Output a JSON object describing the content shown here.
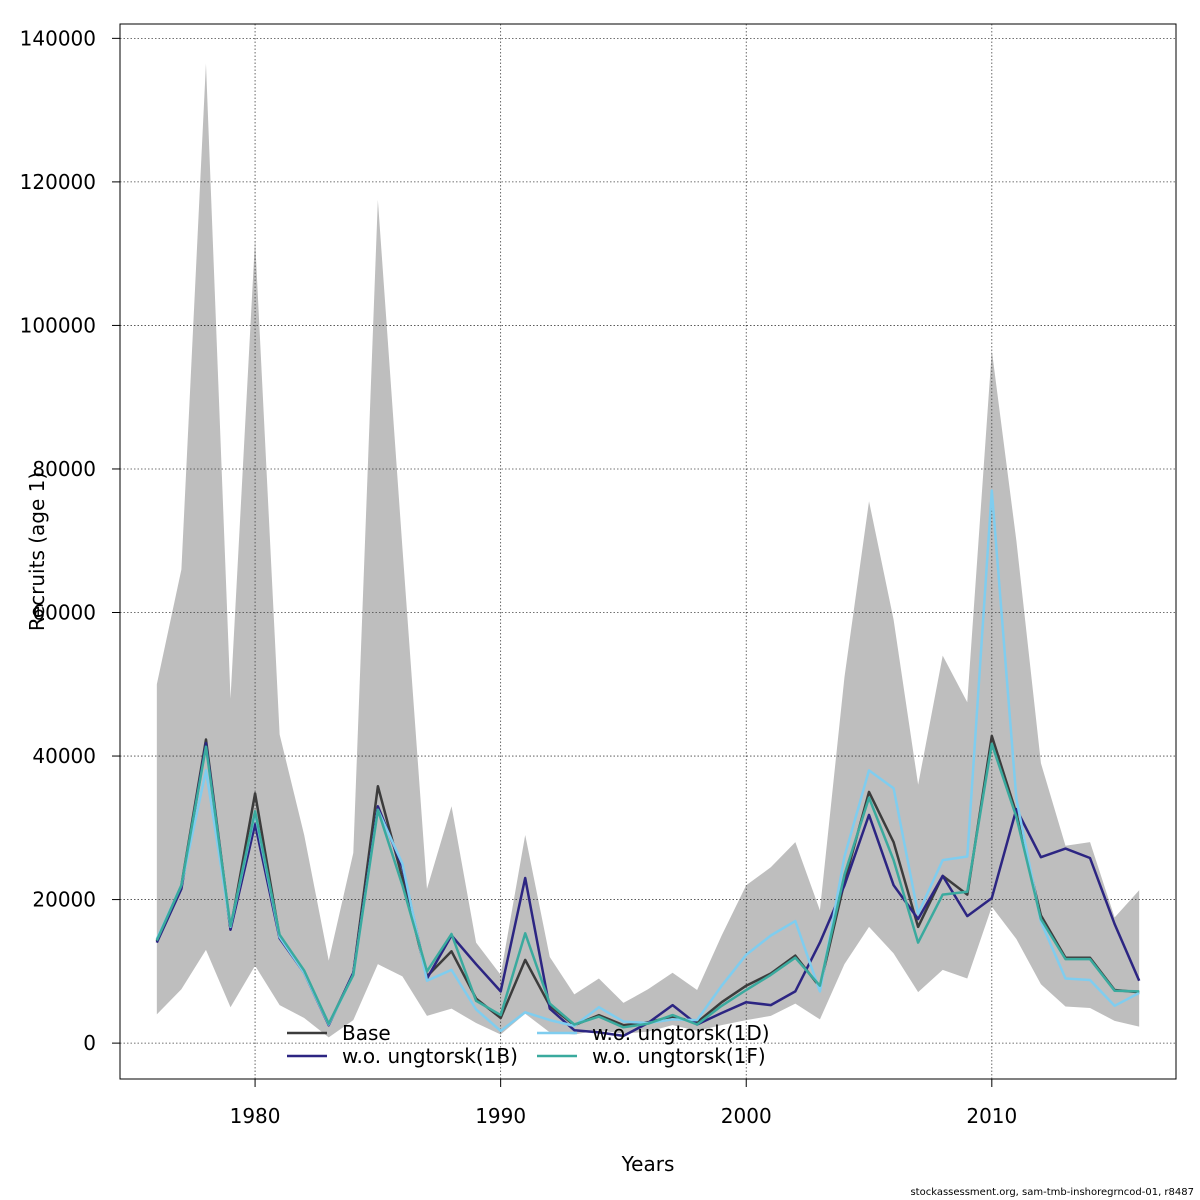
{
  "chart_data": {
    "type": "line",
    "xlabel": "Years",
    "ylabel": "Recruits (age 1)",
    "xlim": [
      1974.5,
      2017.5
    ],
    "ylim": [
      -5000,
      142000
    ],
    "x_ticks": [
      1980,
      1990,
      2000,
      2010
    ],
    "x_tick_labels": [
      "1980",
      "1990",
      "2000",
      "2010"
    ],
    "y_ticks": [
      0,
      20000,
      40000,
      60000,
      80000,
      100000,
      120000,
      140000
    ],
    "y_tick_labels": [
      "0",
      "20000",
      "40000",
      "60000",
      "80000",
      "100000",
      "120000",
      "140000"
    ],
    "grid": true,
    "legend_position": "bottom-left",
    "x": [
      1976,
      1977,
      1978,
      1979,
      1980,
      1981,
      1982,
      1983,
      1984,
      1985,
      1986,
      1987,
      1988,
      1989,
      1990,
      1991,
      1992,
      1993,
      1994,
      1995,
      1996,
      1997,
      1998,
      1999,
      2000,
      2001,
      2002,
      2003,
      2004,
      2005,
      2006,
      2007,
      2008,
      2009,
      2010,
      2011,
      2012,
      2013,
      2014,
      2015,
      2016
    ],
    "band": {
      "upper": [
        50000,
        66000,
        136500,
        48000,
        112000,
        43000,
        29000,
        11500,
        26500,
        117500,
        69000,
        21500,
        33000,
        14000,
        9500,
        29000,
        12000,
        6800,
        9000,
        5600,
        7500,
        9800,
        7400,
        15000,
        22000,
        24500,
        28000,
        18500,
        51000,
        75500,
        59000,
        36000,
        54000,
        47500,
        96500,
        70000,
        39000,
        27500,
        28000,
        17500,
        21300
      ],
      "lower": [
        4000,
        7500,
        13000,
        5000,
        10800,
        5300,
        3500,
        800,
        3200,
        11000,
        9300,
        3800,
        4800,
        2800,
        1200,
        4100,
        1500,
        1200,
        1800,
        1300,
        1600,
        2500,
        1700,
        2500,
        3200,
        3800,
        5500,
        3300,
        11000,
        16200,
        12500,
        7100,
        10200,
        9000,
        19000,
        14500,
        8200,
        5100,
        4900,
        3100,
        2300
      ],
      "color": "#bebebe"
    },
    "series": [
      {
        "name": "Base",
        "color": "#3c3c3c",
        "values": [
          14200,
          22000,
          42300,
          15900,
          34800,
          14800,
          10000,
          2600,
          9700,
          35800,
          23000,
          9300,
          12800,
          6200,
          3500,
          11600,
          5200,
          2500,
          3900,
          2500,
          2900,
          3700,
          2900,
          5700,
          8000,
          9700,
          12200,
          7800,
          22500,
          35000,
          28000,
          16200,
          23300,
          20700,
          42800,
          32000,
          17800,
          11900,
          11900,
          7400,
          7100
        ]
      },
      {
        "name": "w.o. ungtorsk(1B)",
        "color": "#2c2582",
        "values": [
          14000,
          21500,
          41800,
          15800,
          30500,
          14600,
          9800,
          2500,
          9800,
          33000,
          24500,
          9000,
          15000,
          11000,
          7200,
          23000,
          4800,
          1800,
          1500,
          1000,
          2800,
          5300,
          2600,
          4200,
          5700,
          5300,
          7200,
          14000,
          22000,
          31800,
          22000,
          17300,
          23300,
          17700,
          20200,
          32600,
          25900,
          27100,
          25800,
          16600,
          8700
        ]
      },
      {
        "name": "w.o. ungtorsk(1D)",
        "color": "#7fcdef",
        "values": [
          14500,
          22000,
          38000,
          16200,
          32000,
          14800,
          9800,
          2600,
          9500,
          32500,
          25000,
          8700,
          10200,
          4700,
          1700,
          4300,
          3200,
          2400,
          5000,
          3000,
          2800,
          3300,
          3200,
          8000,
          12300,
          15000,
          17000,
          7200,
          26000,
          38000,
          35500,
          18000,
          25500,
          26000,
          77000,
          34000,
          16900,
          9000,
          8800,
          5200,
          7000
        ]
      },
      {
        "name": "w.o. ungtorsk(1F)",
        "color": "#3aaa9e",
        "values": [
          14300,
          22000,
          41300,
          16300,
          32300,
          15100,
          10100,
          2700,
          9500,
          32500,
          22000,
          10000,
          15200,
          5900,
          3900,
          15300,
          5500,
          2600,
          3700,
          2200,
          2700,
          3900,
          2600,
          5200,
          7400,
          9500,
          11900,
          8000,
          23500,
          34200,
          25500,
          14000,
          20700,
          21100,
          41700,
          31500,
          17300,
          11700,
          11700,
          7300,
          7200
        ]
      }
    ]
  },
  "footer": "stockassessment.org, sam-tmb-inshoregrncod-01, r8487"
}
